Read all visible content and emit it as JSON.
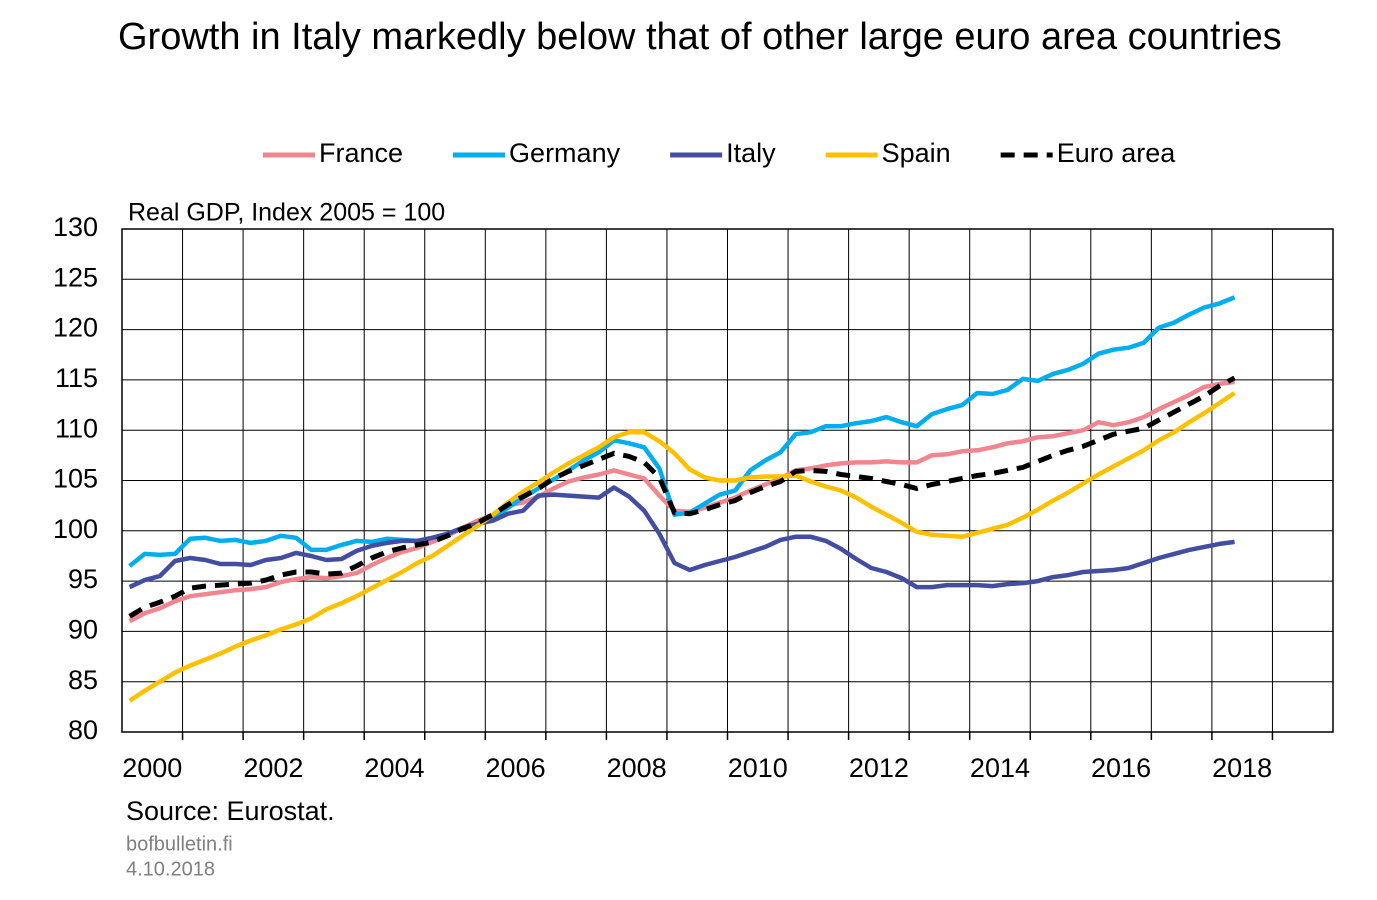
{
  "chart_data": {
    "type": "line",
    "title": "Growth in Italy markedly below that of other large euro area countries",
    "y_axis_label": "Real GDP, Index 2005 = 100",
    "source": "Source: Eurostat.",
    "site": "bofbulletin.fi",
    "date": "4.10.2018",
    "xlim": [
      2000,
      2020
    ],
    "xgrid": [
      2001,
      2002,
      2003,
      2004,
      2005,
      2006,
      2007,
      2008,
      2009,
      2010,
      2011,
      2012,
      2013,
      2014,
      2015,
      2016,
      2017,
      2018,
      2019
    ],
    "xticks": [
      2000,
      2002,
      2004,
      2006,
      2008,
      2010,
      2012,
      2014,
      2016,
      2018
    ],
    "ylim": [
      80,
      130
    ],
    "yticks": [
      80,
      85,
      90,
      95,
      100,
      105,
      110,
      115,
      120,
      125,
      130
    ],
    "grid": true,
    "legend": "top",
    "x": [
      2000.125,
      2000.375,
      2000.625,
      2000.875,
      2001.125,
      2001.375,
      2001.625,
      2001.875,
      2002.125,
      2002.375,
      2002.625,
      2002.875,
      2003.125,
      2003.375,
      2003.625,
      2003.875,
      2004.125,
      2004.375,
      2004.625,
      2004.875,
      2005.125,
      2005.375,
      2005.625,
      2005.875,
      2006.125,
      2006.375,
      2006.625,
      2006.875,
      2007.125,
      2007.375,
      2007.625,
      2007.875,
      2008.125,
      2008.375,
      2008.625,
      2008.875,
      2009.125,
      2009.375,
      2009.625,
      2009.875,
      2010.125,
      2010.375,
      2010.625,
      2010.875,
      2011.125,
      2011.375,
      2011.625,
      2011.875,
      2012.125,
      2012.375,
      2012.625,
      2012.875,
      2013.125,
      2013.375,
      2013.625,
      2013.875,
      2014.125,
      2014.375,
      2014.625,
      2014.875,
      2015.125,
      2015.375,
      2015.625,
      2015.875,
      2016.125,
      2016.375,
      2016.625,
      2016.875,
      2017.125,
      2017.375,
      2017.625,
      2017.875,
      2018.125,
      2018.375
    ],
    "series": [
      {
        "name": "France",
        "color": "#f0868f",
        "dashed": false,
        "values": [
          91,
          91.8,
          92.3,
          93.0,
          93.5,
          93.7,
          93.9,
          94.1,
          94.2,
          94.4,
          94.9,
          95.2,
          95.4,
          95.3,
          95.5,
          95.8,
          96.6,
          97.3,
          97.9,
          98.3,
          98.9,
          99.5,
          100.3,
          101.0,
          101.6,
          102.5,
          102.8,
          103.4,
          104.2,
          104.9,
          105.3,
          105.6,
          106.0,
          105.6,
          105.2,
          103.5,
          102.0,
          101.9,
          102.3,
          102.8,
          103.3,
          104.0,
          104.6,
          105.2,
          106.0,
          106.2,
          106.5,
          106.7,
          106.8,
          106.8,
          106.9,
          106.8,
          106.8,
          107.5,
          107.6,
          107.9,
          108.0,
          108.3,
          108.7,
          108.9,
          109.3,
          109.4,
          109.7,
          110.0,
          110.8,
          110.5,
          110.8,
          111.3,
          112.1,
          112.8,
          113.5,
          114.3,
          114.6,
          114.8
        ]
      },
      {
        "name": "Germany",
        "color": "#00aeef",
        "dashed": false,
        "values": [
          96.5,
          97.7,
          97.6,
          97.7,
          99.2,
          99.3,
          99.0,
          99.1,
          98.8,
          99.0,
          99.5,
          99.3,
          98.1,
          98.1,
          98.6,
          99.0,
          98.9,
          99.2,
          99.1,
          99.0,
          99.3,
          99.7,
          100.3,
          100.7,
          101.2,
          102.3,
          103.3,
          104.2,
          105.1,
          106.0,
          107.0,
          107.8,
          109.0,
          108.7,
          108.3,
          106.2,
          101.6,
          101.8,
          102.7,
          103.6,
          104.0,
          106.0,
          107.0,
          107.8,
          109.6,
          109.8,
          110.4,
          110.4,
          110.7,
          110.9,
          111.3,
          110.8,
          110.4,
          111.6,
          112.1,
          112.5,
          113.7,
          113.6,
          114.0,
          115.1,
          114.9,
          115.6,
          116.0,
          116.6,
          117.6,
          118.0,
          118.2,
          118.7,
          120.2,
          120.7,
          121.5,
          122.2,
          122.6,
          123.2
        ]
      },
      {
        "name": "Italy",
        "color": "#444ea0",
        "dashed": false,
        "values": [
          94.4,
          95.1,
          95.5,
          97.0,
          97.3,
          97.1,
          96.7,
          96.7,
          96.6,
          97.1,
          97.3,
          97.8,
          97.5,
          97.1,
          97.2,
          98.0,
          98.5,
          98.8,
          99.0,
          99.0,
          99.3,
          99.7,
          100.3,
          100.7,
          101.0,
          101.7,
          102.0,
          103.5,
          103.6,
          103.5,
          103.4,
          103.3,
          104.3,
          103.4,
          102.0,
          99.7,
          96.8,
          96.1,
          96.6,
          97.0,
          97.4,
          97.9,
          98.4,
          99.1,
          99.4,
          99.4,
          99.0,
          98.2,
          97.2,
          96.3,
          95.9,
          95.3,
          94.4,
          94.4,
          94.6,
          94.6,
          94.6,
          94.5,
          94.7,
          94.8,
          95.0,
          95.4,
          95.6,
          95.9,
          96.0,
          96.1,
          96.3,
          96.8,
          97.3,
          97.7,
          98.1,
          98.4,
          98.7,
          98.9
        ]
      },
      {
        "name": "Spain",
        "color": "#ffc000",
        "dashed": false,
        "values": [
          83.1,
          84.1,
          85.0,
          85.9,
          86.6,
          87.2,
          87.8,
          88.5,
          89.1,
          89.6,
          90.2,
          90.7,
          91.3,
          92.2,
          92.8,
          93.5,
          94.3,
          95.1,
          95.9,
          96.8,
          97.5,
          98.5,
          99.5,
          100.5,
          101.6,
          102.8,
          103.9,
          104.8,
          105.8,
          106.7,
          107.5,
          108.3,
          109.3,
          109.8,
          109.8,
          108.9,
          107.7,
          106.1,
          105.3,
          105.0,
          105.0,
          105.3,
          105.4,
          105.4,
          105.5,
          104.9,
          104.4,
          104.0,
          103.3,
          102.4,
          101.6,
          100.8,
          99.9,
          99.6,
          99.5,
          99.4,
          99.8,
          100.2,
          100.6,
          101.3,
          102.1,
          103.0,
          103.8,
          104.7,
          105.6,
          106.4,
          107.2,
          108.0,
          109.0,
          109.8,
          110.8,
          111.7,
          112.7,
          113.7
        ]
      },
      {
        "name": "Euro area",
        "color": "#000000",
        "dashed": true,
        "values": [
          91.5,
          92.4,
          92.9,
          93.5,
          94.3,
          94.5,
          94.6,
          94.7,
          94.8,
          95.1,
          95.6,
          95.9,
          95.9,
          95.7,
          95.8,
          96.5,
          97.3,
          97.9,
          98.3,
          98.6,
          98.9,
          99.5,
          100.2,
          100.8,
          101.6,
          102.6,
          103.4,
          104.2,
          105.2,
          105.9,
          106.5,
          107.1,
          107.7,
          107.4,
          106.8,
          105.3,
          101.8,
          101.7,
          102.1,
          102.6,
          103.0,
          103.8,
          104.4,
          104.9,
          105.9,
          106.0,
          105.9,
          105.6,
          105.4,
          105.2,
          104.9,
          104.6,
          104.2,
          104.6,
          104.9,
          105.2,
          105.5,
          105.7,
          106.0,
          106.3,
          106.9,
          107.5,
          108.0,
          108.4,
          109.0,
          109.6,
          109.9,
          110.2,
          111.0,
          111.8,
          112.6,
          113.4,
          114.4,
          115.2
        ]
      }
    ]
  }
}
